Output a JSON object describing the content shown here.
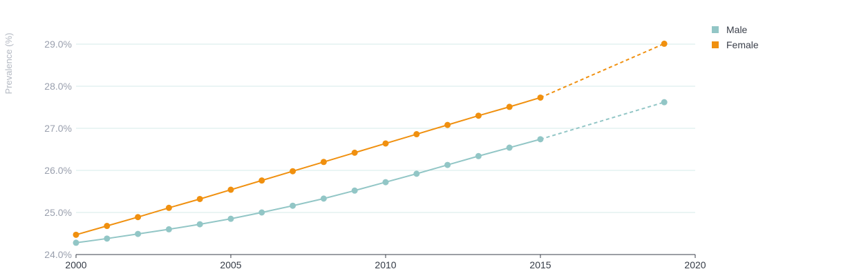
{
  "chart_data": {
    "type": "line",
    "title": "",
    "xlabel": "",
    "ylabel": "Prevalence (%)",
    "xlim": [
      2000,
      2020
    ],
    "ylim": [
      24.0,
      29.5
    ],
    "x_ticks": [
      "2000",
      "2005",
      "2010",
      "2015",
      "2020"
    ],
    "y_ticks": [
      "24.0%",
      "25.0%",
      "26.0%",
      "27.0%",
      "28.0%",
      "29.0%"
    ],
    "grid": "horizontal",
    "legend_position": "top-right",
    "series": [
      {
        "name": "Male",
        "color": "#92c6c6",
        "x": [
          2000,
          2001,
          2002,
          2003,
          2004,
          2005,
          2006,
          2007,
          2008,
          2009,
          2010,
          2011,
          2012,
          2013,
          2014,
          2015,
          2019
        ],
        "values": [
          24.28,
          24.38,
          24.49,
          24.6,
          24.72,
          24.85,
          25.0,
          25.16,
          25.33,
          25.52,
          25.72,
          25.92,
          26.13,
          26.34,
          26.54,
          26.74,
          27.62
        ],
        "projected_from_index": 15
      },
      {
        "name": "Female",
        "color": "#f0900f",
        "x": [
          2000,
          2001,
          2002,
          2003,
          2004,
          2005,
          2006,
          2007,
          2008,
          2009,
          2010,
          2011,
          2012,
          2013,
          2014,
          2015,
          2019
        ],
        "values": [
          24.47,
          24.68,
          24.89,
          25.11,
          25.32,
          25.54,
          25.76,
          25.98,
          26.2,
          26.42,
          26.64,
          26.86,
          27.08,
          27.3,
          27.51,
          27.73,
          29.01
        ],
        "projected_from_index": 15
      }
    ]
  },
  "colors": {
    "grid": "#d6ebe9",
    "axis": "#3a3f4a"
  }
}
